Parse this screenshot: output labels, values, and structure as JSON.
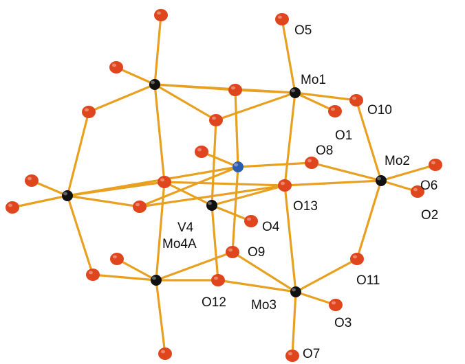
{
  "colors": {
    "background": "#ffffff",
    "bond": "#e8a020",
    "oxygen": "#e0461e",
    "metal": "#111111",
    "vanadium": "#2a5db0",
    "label": "#111111"
  },
  "labels": {
    "O5": "O5",
    "Mo1": "Mo1",
    "O10": "O10",
    "O1": "O1",
    "O8": "O8",
    "Mo2": "Mo2",
    "O6": "O6",
    "O2": "O2",
    "O13": "O13",
    "O4": "O4",
    "V4": "V4",
    "Mo4A": "Mo4A",
    "O9": "O9",
    "O11": "O11",
    "O12": "O12",
    "Mo3": "Mo3",
    "O3": "O3",
    "O7": "O7"
  }
}
